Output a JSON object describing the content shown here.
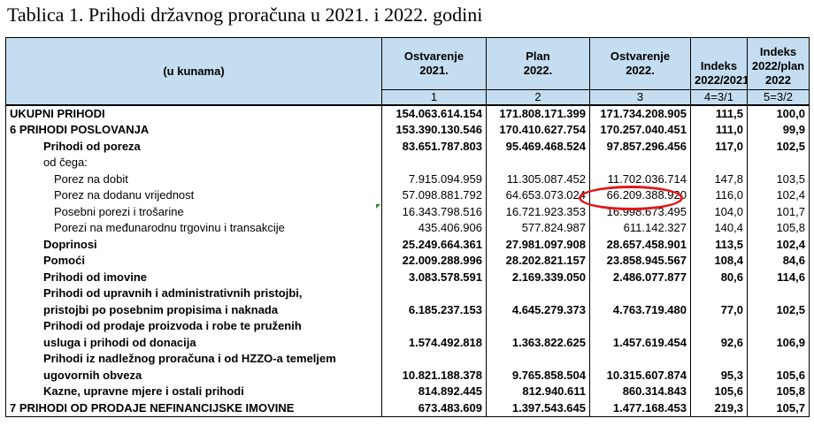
{
  "caption": "Tablica 1. Prihodi državnog proračuna u 2021. i 2022. godini",
  "header": {
    "unit_label": "(u kunama)",
    "columns": [
      {
        "line1": "Ostvarenje",
        "line2": "2021.",
        "num": "1"
      },
      {
        "line1": "Plan",
        "line2": "2022.",
        "num": "2"
      },
      {
        "line1": "Ostvarenje",
        "line2": "2022.",
        "num": "3"
      },
      {
        "line1": "Indeks",
        "line2": "2022/2021",
        "num": "4=3/1"
      },
      {
        "line1": "Indeks",
        "line2": "2022/plan",
        "line3": "2022",
        "num": "5=3/2"
      }
    ]
  },
  "rows": [
    {
      "label": "UKUPNI PRIHODI",
      "v1": "154.063.614.154",
      "v2": "171.808.171.399",
      "v3": "171.734.208.905",
      "i1": "111,5",
      "i2": "100,0"
    },
    {
      "label": "6 PRIHODI POSLOVANJA",
      "v1": "153.390.130.546",
      "v2": "170.410.627.754",
      "v3": "170.257.040.451",
      "i1": "111,0",
      "i2": "99,9"
    },
    {
      "label": "Prihodi od poreza",
      "v1": "83.651.787.803",
      "v2": "95.469.468.524",
      "v3": "97.857.296.456",
      "i1": "117,0",
      "i2": "102,5"
    },
    {
      "label": "od čega:",
      "v1": "",
      "v2": "",
      "v3": "",
      "i1": "",
      "i2": ""
    },
    {
      "label": "Porez na dobit",
      "v1": "7.915.094.959",
      "v2": "11.305.087.452",
      "v3": "11.702.036.714",
      "i1": "147,8",
      "i2": "103,5"
    },
    {
      "label": "Porez na dodanu vrijednost",
      "v1": "57.098.881.792",
      "v2": "64.653.073.024",
      "v3": "66.209.388.920",
      "i1": "116,0",
      "i2": "102,4"
    },
    {
      "label": "Posebni porezi i trošarine",
      "v1": "16.343.798.516",
      "v2": "16.721.923.353",
      "v3": "16.998.673.495",
      "i1": "104,0",
      "i2": "101,7"
    },
    {
      "label": "Porezi na međunarodnu trgovinu i transakcije",
      "v1": "435.406.906",
      "v2": "577.824.987",
      "v3": "611.142.327",
      "i1": "140,4",
      "i2": "105,8"
    },
    {
      "label": "Doprinosi",
      "v1": "25.249.664.361",
      "v2": "27.981.097.908",
      "v3": "28.657.458.901",
      "i1": "113,5",
      "i2": "102,4"
    },
    {
      "label": "Pomoći",
      "v1": "22.009.288.996",
      "v2": "28.202.821.157",
      "v3": "23.858.945.567",
      "i1": "108,4",
      "i2": "84,6"
    },
    {
      "label": "Prihodi od imovine",
      "v1": "3.083.578.591",
      "v2": "2.169.339.050",
      "v3": "2.486.077.877",
      "i1": "80,6",
      "i2": "114,6"
    },
    {
      "label": "Prihodi od upravnih i administrativnih pristojbi,",
      "v1": "",
      "v2": "",
      "v3": "",
      "i1": "",
      "i2": ""
    },
    {
      "label": "pristojbi po posebnim propisima i naknada",
      "v1": "6.185.237.153",
      "v2": "4.645.279.373",
      "v3": "4.763.719.480",
      "i1": "77,0",
      "i2": "102,5"
    },
    {
      "label": "Prihodi od prodaje proizvoda i robe te pruženih",
      "v1": "",
      "v2": "",
      "v3": "",
      "i1": "",
      "i2": ""
    },
    {
      "label": "usluga i prihodi od donacija",
      "v1": "1.574.492.818",
      "v2": "1.363.822.625",
      "v3": "1.457.619.454",
      "i1": "92,6",
      "i2": "106,9"
    },
    {
      "label": "Prihodi iz nadležnog proračuna i od HZZO-a temeljem",
      "v1": "",
      "v2": "",
      "v3": "",
      "i1": "",
      "i2": ""
    },
    {
      "label": "ugovornih obveza",
      "v1": "10.821.188.378",
      "v2": "9.765.858.504",
      "v3": "10.315.607.874",
      "i1": "95,3",
      "i2": "105,6"
    },
    {
      "label": "Kazne, upravne mjere i ostali prihodi",
      "v1": "814.892.445",
      "v2": "812.940.611",
      "v3": "860.314.843",
      "i1": "105,6",
      "i2": "105,8"
    },
    {
      "label": "7 PRIHODI OD PRODAJE NEFINANCIJSKE IMOVINE",
      "v1": "673.483.609",
      "v2": "1.397.543.645",
      "v3": "1.477.168.453",
      "i1": "219,3",
      "i2": "105,7"
    }
  ],
  "colors": {
    "header_bg": "#c5ddf0",
    "highlight": "#e01818"
  }
}
